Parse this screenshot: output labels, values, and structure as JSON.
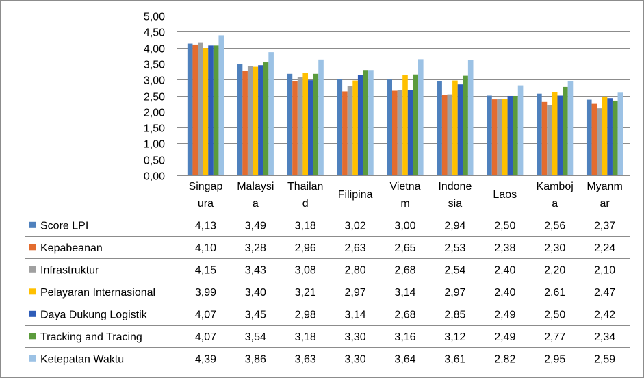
{
  "chart_data": {
    "type": "bar",
    "title": "",
    "xlabel": "",
    "ylabel": "",
    "ylim": [
      0,
      5
    ],
    "yticks": [
      "0,00",
      "0,50",
      "1,00",
      "1,50",
      "2,00",
      "2,50",
      "3,00",
      "3,50",
      "4,00",
      "4,50",
      "5,00"
    ],
    "grid": true,
    "legend": "data-table-left",
    "categories": [
      {
        "name": "Singapura",
        "lines": [
          "Singap",
          "ura"
        ]
      },
      {
        "name": "Malaysia",
        "lines": [
          "Malaysi",
          "a"
        ]
      },
      {
        "name": "Thailand",
        "lines": [
          "Thailan",
          "d"
        ]
      },
      {
        "name": "Filipina",
        "lines": [
          "Filipina"
        ]
      },
      {
        "name": "Vietnam",
        "lines": [
          "Vietna",
          "m"
        ]
      },
      {
        "name": "Indonesia",
        "lines": [
          "Indone",
          "sia"
        ]
      },
      {
        "name": "Laos",
        "lines": [
          "Laos"
        ]
      },
      {
        "name": "Kamboja",
        "lines": [
          "Kamboj",
          "a"
        ]
      },
      {
        "name": "Myanmar",
        "lines": [
          "Myanm",
          "ar"
        ]
      }
    ],
    "series": [
      {
        "name": "Score LPI",
        "color": "#4f81bd",
        "values": [
          4.13,
          3.49,
          3.18,
          3.02,
          3.0,
          2.94,
          2.5,
          2.56,
          2.37
        ],
        "labels": [
          "4,13",
          "3,49",
          "3,18",
          "3,02",
          "3,00",
          "2,94",
          "2,50",
          "2,56",
          "2,37"
        ]
      },
      {
        "name": "Kepabeanan",
        "color": "#e36c2f",
        "values": [
          4.1,
          3.28,
          2.96,
          2.63,
          2.65,
          2.53,
          2.38,
          2.3,
          2.24
        ],
        "labels": [
          "4,10",
          "3,28",
          "2,96",
          "2,63",
          "2,65",
          "2,53",
          "2,38",
          "2,30",
          "2,24"
        ]
      },
      {
        "name": "Infrastruktur",
        "color": "#a0a0a0",
        "values": [
          4.15,
          3.43,
          3.08,
          2.8,
          2.68,
          2.54,
          2.4,
          2.2,
          2.1
        ],
        "labels": [
          "4,15",
          "3,43",
          "3,08",
          "2,80",
          "2,68",
          "2,54",
          "2,40",
          "2,20",
          "2,10"
        ]
      },
      {
        "name": "Pelayaran Internasional",
        "color": "#ffc000",
        "values": [
          3.99,
          3.4,
          3.21,
          2.97,
          3.14,
          2.97,
          2.4,
          2.61,
          2.47
        ],
        "labels": [
          "3,99",
          "3,40",
          "3,21",
          "2,97",
          "3,14",
          "2,97",
          "2,40",
          "2,61",
          "2,47"
        ]
      },
      {
        "name": "Daya Dukung Logistik",
        "color": "#2e5cb8",
        "values": [
          4.07,
          3.45,
          2.98,
          3.14,
          2.68,
          2.85,
          2.49,
          2.5,
          2.42
        ],
        "labels": [
          "4,07",
          "3,45",
          "2,98",
          "3,14",
          "2,68",
          "2,85",
          "2,49",
          "2,50",
          "2,42"
        ]
      },
      {
        "name": "Tracking and Tracing",
        "color": "#5b9b3c",
        "values": [
          4.07,
          3.54,
          3.18,
          3.3,
          3.16,
          3.12,
          2.49,
          2.77,
          2.34
        ],
        "labels": [
          "4,07",
          "3,54",
          "3,18",
          "3,30",
          "3,16",
          "3,12",
          "2,49",
          "2,77",
          "2,34"
        ]
      },
      {
        "name": "Ketepatan Waktu",
        "color": "#9cc2e5",
        "values": [
          4.39,
          3.86,
          3.63,
          3.3,
          3.64,
          3.61,
          2.82,
          2.95,
          2.59
        ],
        "labels": [
          "4,39",
          "3,86",
          "3,63",
          "3,30",
          "3,64",
          "3,61",
          "2,82",
          "2,95",
          "2,59"
        ]
      }
    ]
  }
}
